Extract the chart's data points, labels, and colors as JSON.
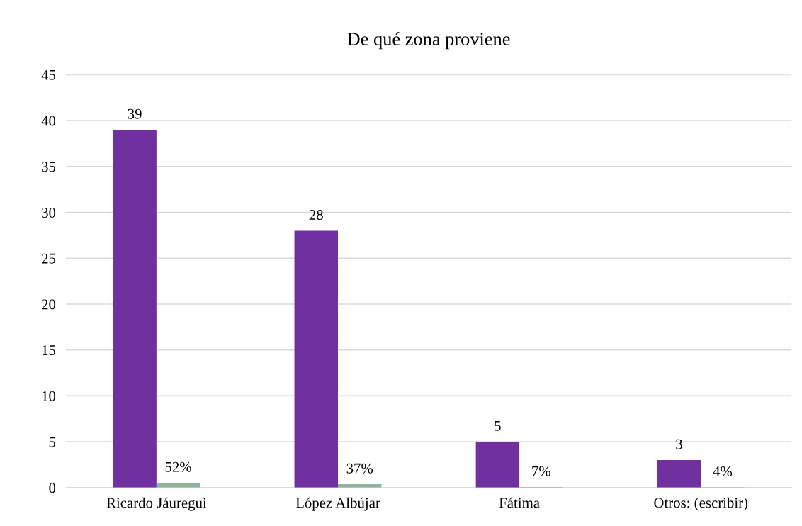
{
  "chart_data": {
    "type": "bar",
    "title": "De qué zona proviene",
    "categories": [
      "Ricardo Jáuregui",
      "López Albújar",
      "Fátima",
      "Otros: (escribir)"
    ],
    "series": [
      {
        "color": "#7030a0",
        "values": [
          39,
          28,
          5,
          3
        ],
        "value_labels": [
          "39",
          "28",
          "5",
          "3"
        ]
      },
      {
        "color": "#8fb39a",
        "values": [
          0.52,
          0.37,
          0.07,
          0.04
        ],
        "value_labels": [
          "52%",
          "37%",
          "7%",
          "4%"
        ]
      }
    ],
    "ylim": [
      0,
      45
    ],
    "yticks": [
      0,
      5,
      10,
      15,
      20,
      25,
      30,
      35,
      40,
      45
    ],
    "grid": "y",
    "legend": false
  }
}
